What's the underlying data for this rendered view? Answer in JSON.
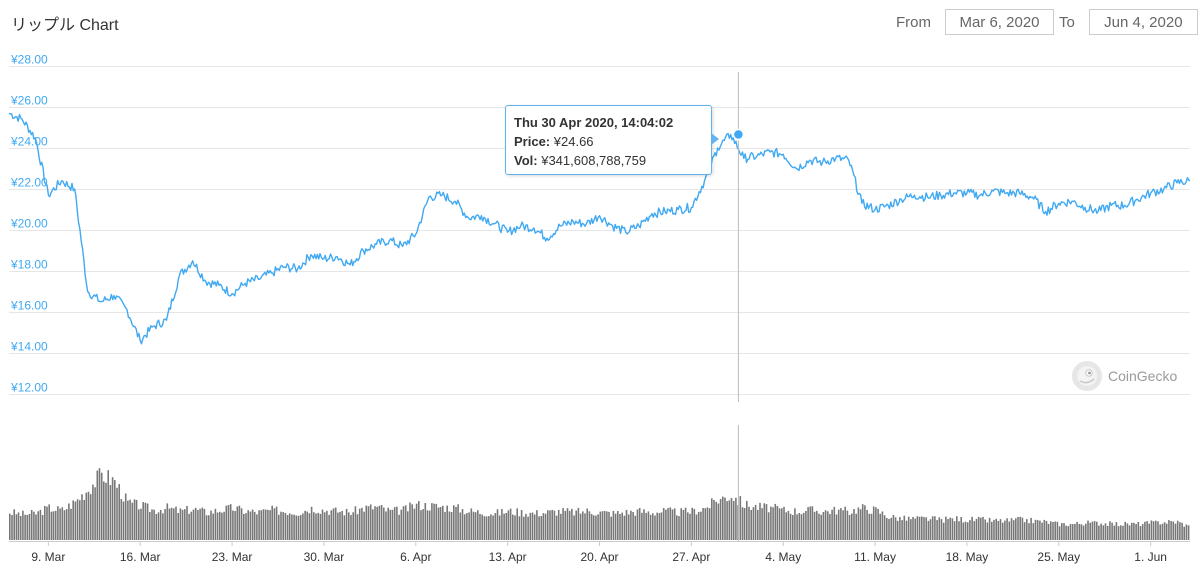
{
  "header": {
    "title": "リップル Chart",
    "from_label": "From",
    "from_value": "Mar 6, 2020",
    "to_label": "To",
    "to_value": "Jun 4, 2020"
  },
  "tooltip": {
    "date": "Thu 30 Apr 2020, 14:04:02",
    "price_label": "Price:",
    "price_value": "¥24.66",
    "vol_label": "Vol:",
    "vol_value": "¥341,608,788,759"
  },
  "watermark": {
    "text": "CoinGecko",
    "icon": "gecko-logo-icon"
  },
  "colors": {
    "price_line": "#40a9f2",
    "volume_bar": "#777777",
    "grid": "#e6e6e6",
    "axis_label": "#40a9f2"
  },
  "chart_data": [
    {
      "type": "line",
      "title": "リップル Chart",
      "ylabel": "",
      "ylim": [
        12,
        28
      ],
      "y_ticks": [
        "¥12.00",
        "¥14.00",
        "¥16.00",
        "¥18.00",
        "¥20.00",
        "¥22.00",
        "¥24.00",
        "¥26.00",
        "¥28.00"
      ],
      "x_ticks": [
        "9. Mar",
        "16. Mar",
        "23. Mar",
        "30. Mar",
        "6. Apr",
        "13. Apr",
        "20. Apr",
        "27. Apr",
        "4. May",
        "11. May",
        "18. May",
        "25. May",
        "1. Jun"
      ],
      "xlim": [
        "2020-03-06",
        "2020-06-04"
      ],
      "grid": true,
      "highlight": {
        "x": "2020-04-30T14:04:02",
        "y": 24.66
      },
      "series": [
        {
          "x": [
            "2020-03-06",
            "2020-03-07",
            "2020-03-08",
            "2020-03-09",
            "2020-03-10",
            "2020-03-11",
            "2020-03-12",
            "2020-03-13",
            "2020-03-14",
            "2020-03-15",
            "2020-03-16",
            "2020-03-17",
            "2020-03-18",
            "2020-03-19",
            "2020-03-20",
            "2020-03-21",
            "2020-03-22",
            "2020-03-23",
            "2020-03-24",
            "2020-03-25",
            "2020-03-26",
            "2020-03-27",
            "2020-03-28",
            "2020-03-29",
            "2020-03-30",
            "2020-03-31",
            "2020-04-01",
            "2020-04-02",
            "2020-04-03",
            "2020-04-04",
            "2020-04-05",
            "2020-04-06",
            "2020-04-07",
            "2020-04-08",
            "2020-04-09",
            "2020-04-10",
            "2020-04-11",
            "2020-04-12",
            "2020-04-13",
            "2020-04-14",
            "2020-04-15",
            "2020-04-16",
            "2020-04-17",
            "2020-04-18",
            "2020-04-19",
            "2020-04-20",
            "2020-04-21",
            "2020-04-22",
            "2020-04-23",
            "2020-04-24",
            "2020-04-25",
            "2020-04-26",
            "2020-04-27",
            "2020-04-28",
            "2020-04-29",
            "2020-04-30",
            "2020-05-01",
            "2020-05-02",
            "2020-05-03",
            "2020-05-04",
            "2020-05-05",
            "2020-05-06",
            "2020-05-07",
            "2020-05-08",
            "2020-05-09",
            "2020-05-10",
            "2020-05-11",
            "2020-05-12",
            "2020-05-13",
            "2020-05-14",
            "2020-05-15",
            "2020-05-16",
            "2020-05-17",
            "2020-05-18",
            "2020-05-19",
            "2020-05-20",
            "2020-05-21",
            "2020-05-22",
            "2020-05-23",
            "2020-05-24",
            "2020-05-25",
            "2020-05-26",
            "2020-05-27",
            "2020-05-28",
            "2020-05-29",
            "2020-05-30",
            "2020-05-31",
            "2020-06-01",
            "2020-06-02",
            "2020-06-03",
            "2020-06-04"
          ],
          "values": [
            25.7,
            25.4,
            24.5,
            21.7,
            22.4,
            22.0,
            17.0,
            16.5,
            16.8,
            16.1,
            14.6,
            15.3,
            15.6,
            17.8,
            18.5,
            17.5,
            17.3,
            16.9,
            17.4,
            17.6,
            17.9,
            18.2,
            18.1,
            18.8,
            18.6,
            18.7,
            18.3,
            19.0,
            19.3,
            19.5,
            19.2,
            19.8,
            21.6,
            21.7,
            21.4,
            20.6,
            20.7,
            20.3,
            19.9,
            20.2,
            20.1,
            19.6,
            20.2,
            20.4,
            20.3,
            20.7,
            20.2,
            19.9,
            20.2,
            20.8,
            20.9,
            21.0,
            21.1,
            22.4,
            24.0,
            24.66,
            23.5,
            23.6,
            23.8,
            23.7,
            23.0,
            23.4,
            23.3,
            23.5,
            23.4,
            21.3,
            21.0,
            21.2,
            21.5,
            21.7,
            21.6,
            21.7,
            21.8,
            21.8,
            21.7,
            21.9,
            21.8,
            21.8,
            21.6,
            20.9,
            21.3,
            21.4,
            21.1,
            20.9,
            21.2,
            21.2,
            21.5,
            21.8,
            22.0,
            22.3,
            22.4
          ]
        }
      ]
    },
    {
      "type": "bar",
      "title": "",
      "ylabel": "",
      "x": [
        "2020-03-06",
        "2020-03-07",
        "2020-03-08",
        "2020-03-09",
        "2020-03-10",
        "2020-03-11",
        "2020-03-12",
        "2020-03-13",
        "2020-03-14",
        "2020-03-15",
        "2020-03-16",
        "2020-03-17",
        "2020-03-18",
        "2020-03-19",
        "2020-03-20",
        "2020-03-21",
        "2020-03-22",
        "2020-03-23",
        "2020-03-24",
        "2020-03-25",
        "2020-03-26",
        "2020-03-27",
        "2020-03-28",
        "2020-03-29",
        "2020-03-30",
        "2020-03-31",
        "2020-04-01",
        "2020-04-02",
        "2020-04-03",
        "2020-04-04",
        "2020-04-05",
        "2020-04-06",
        "2020-04-07",
        "2020-04-08",
        "2020-04-09",
        "2020-04-10",
        "2020-04-11",
        "2020-04-12",
        "2020-04-13",
        "2020-04-14",
        "2020-04-15",
        "2020-04-16",
        "2020-04-17",
        "2020-04-18",
        "2020-04-19",
        "2020-04-20",
        "2020-04-21",
        "2020-04-22",
        "2020-04-23",
        "2020-04-24",
        "2020-04-25",
        "2020-04-26",
        "2020-04-27",
        "2020-04-28",
        "2020-04-29",
        "2020-04-30",
        "2020-05-01",
        "2020-05-02",
        "2020-05-03",
        "2020-05-04",
        "2020-05-05",
        "2020-05-06",
        "2020-05-07",
        "2020-05-08",
        "2020-05-09",
        "2020-05-10",
        "2020-05-11",
        "2020-05-12",
        "2020-05-13",
        "2020-05-14",
        "2020-05-15",
        "2020-05-16",
        "2020-05-17",
        "2020-05-18",
        "2020-05-19",
        "2020-05-20",
        "2020-05-21",
        "2020-05-22",
        "2020-05-23",
        "2020-05-24",
        "2020-05-25",
        "2020-05-26",
        "2020-05-27",
        "2020-05-28",
        "2020-05-29",
        "2020-05-30",
        "2020-05-31",
        "2020-06-01",
        "2020-06-02",
        "2020-06-03",
        "2020-06-04"
      ],
      "values": [
        0.26,
        0.24,
        0.25,
        0.3,
        0.28,
        0.36,
        0.48,
        0.62,
        0.55,
        0.35,
        0.32,
        0.28,
        0.3,
        0.27,
        0.29,
        0.26,
        0.28,
        0.3,
        0.27,
        0.26,
        0.28,
        0.27,
        0.26,
        0.3,
        0.28,
        0.27,
        0.26,
        0.3,
        0.31,
        0.27,
        0.28,
        0.33,
        0.32,
        0.31,
        0.3,
        0.27,
        0.26,
        0.25,
        0.27,
        0.26,
        0.25,
        0.26,
        0.27,
        0.26,
        0.27,
        0.26,
        0.25,
        0.26,
        0.27,
        0.26,
        0.27,
        0.26,
        0.27,
        0.3,
        0.38,
        0.42,
        0.33,
        0.31,
        0.3,
        0.28,
        0.27,
        0.28,
        0.27,
        0.28,
        0.27,
        0.3,
        0.28,
        0.22,
        0.2,
        0.2,
        0.2,
        0.19,
        0.2,
        0.19,
        0.19,
        0.18,
        0.18,
        0.19,
        0.18,
        0.17,
        0.15,
        0.15,
        0.16,
        0.16,
        0.15,
        0.15,
        0.15,
        0.16,
        0.17,
        0.17,
        0.12
      ]
    }
  ]
}
